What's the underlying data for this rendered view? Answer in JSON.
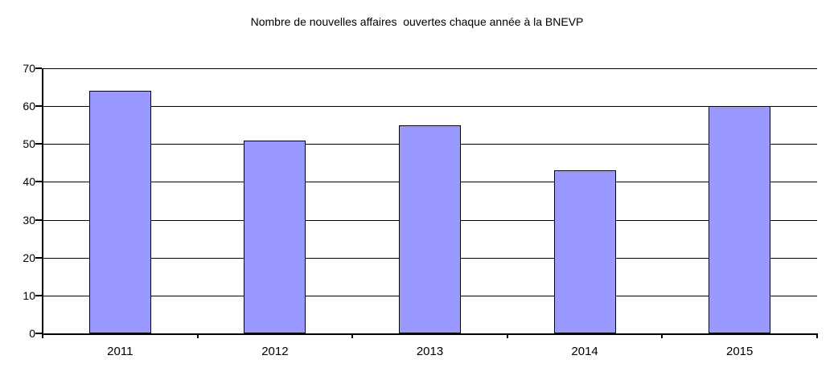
{
  "chart_data": {
    "type": "bar",
    "title": "Nombre de nouvelles affaires  ouvertes chaque année à la BNEVP",
    "categories": [
      "2011",
      "2012",
      "2013",
      "2014",
      "2015"
    ],
    "values": [
      64,
      51,
      55,
      43,
      60
    ],
    "xlabel": "",
    "ylabel": "",
    "ylim": [
      0,
      70
    ],
    "yticks": [
      0,
      10,
      20,
      30,
      40,
      50,
      60,
      70
    ],
    "grid": "horizontal",
    "legend": "none",
    "colors": {
      "bar_fill": "#9999FF",
      "bar_border": "#000000",
      "axis": "#000000",
      "gridline": "#000000",
      "text": "#000000",
      "background": "#FFFFFF"
    }
  }
}
